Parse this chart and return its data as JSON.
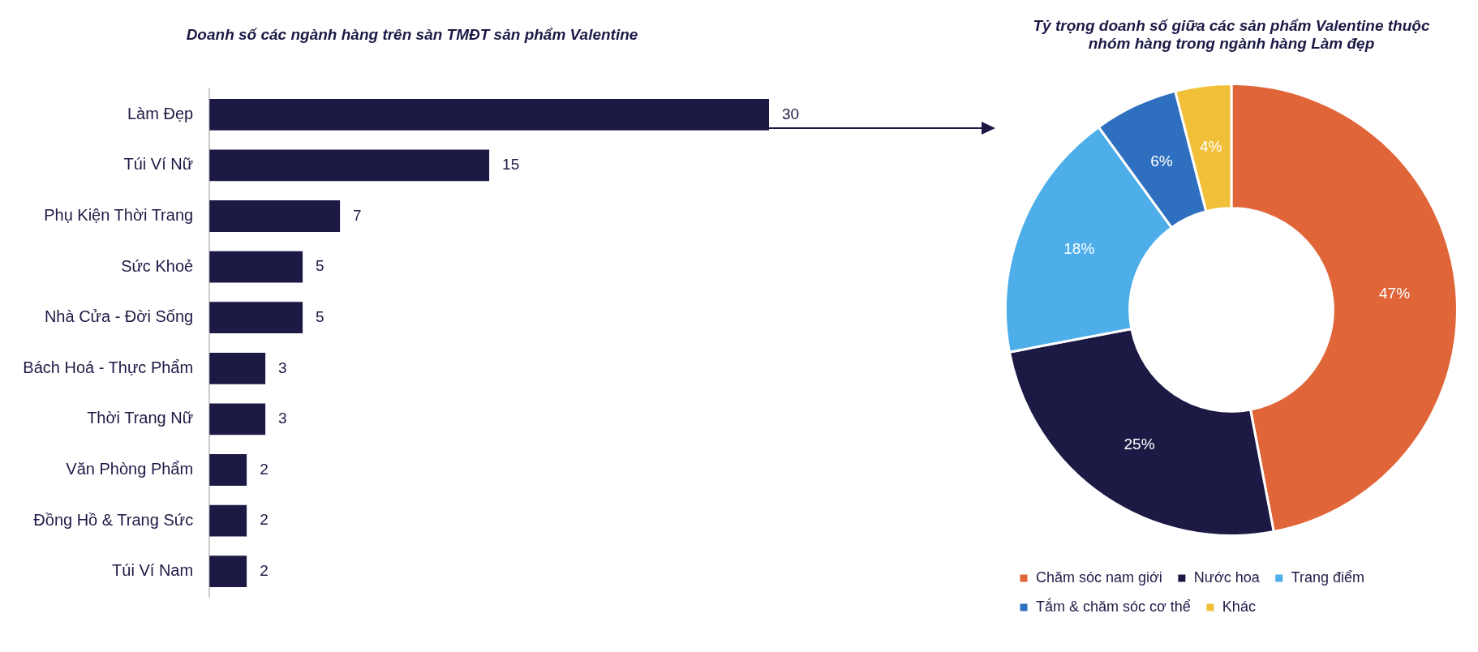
{
  "chart_data": [
    {
      "type": "bar",
      "orientation": "horizontal",
      "title": "Doanh số các ngành hàng trên sàn TMĐT sản phẩm Valentine",
      "categories": [
        "Làm Đẹp",
        "Túi Ví Nữ",
        "Phụ Kiện Thời Trang",
        "Sức Khoẻ",
        "Nhà Cửa - Đời Sống",
        "Bách Hoá - Thực Phẩm",
        "Thời Trang Nữ",
        "Văn Phòng Phẩm",
        "Đồng Hồ & Trang Sức",
        "Túi Ví Nam"
      ],
      "values": [
        30,
        15,
        7,
        5,
        5,
        3,
        3,
        2,
        2,
        2
      ],
      "color": "#1c1a45",
      "data_labels": true,
      "grid": false,
      "tick_labels": "y",
      "legend": false
    },
    {
      "type": "donut",
      "title": "Tỷ trọng doanh số giữa các sản phẩm Valentine thuộc nhóm hàng trong ngành hàng Làm đẹp",
      "categories": [
        "Chăm sóc nam giới",
        "Nước hoa",
        "Trang điểm",
        "Tắm & chăm sóc cơ thể",
        "Khác"
      ],
      "values": [
        47,
        25,
        18,
        6,
        4
      ],
      "value_labels": [
        "47%",
        "25%",
        "18%",
        "6%",
        "4%"
      ],
      "colors": [
        "#e0663a",
        "#1c1a45",
        "#4daeea",
        "#2f6fbf",
        "#f2c038"
      ],
      "legend": "bottom"
    }
  ]
}
